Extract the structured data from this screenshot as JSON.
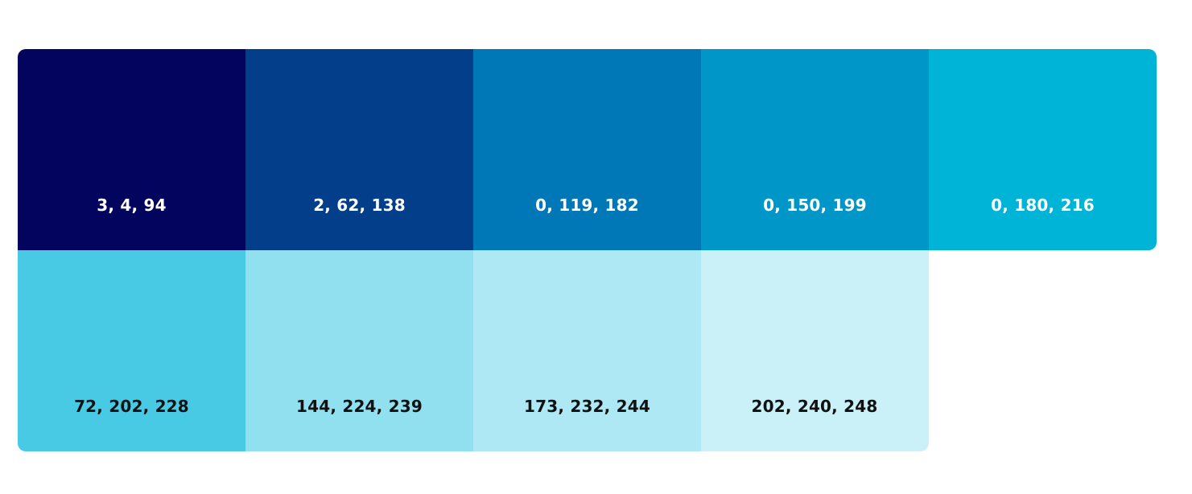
{
  "palette": {
    "rows": [
      [
        {
          "label": "3, 4, 94",
          "color": "#03045e",
          "text_color": "light"
        },
        {
          "label": "2, 62, 138",
          "color": "#023e8a",
          "text_color": "light"
        },
        {
          "label": "0, 119, 182",
          "color": "#0077b6",
          "text_color": "light"
        },
        {
          "label": "0, 150, 199",
          "color": "#0096c7",
          "text_color": "light"
        },
        {
          "label": "0, 180, 216",
          "color": "#00b4d8",
          "text_color": "light"
        }
      ],
      [
        {
          "label": "72, 202, 228",
          "color": "#48cae4",
          "text_color": "dark"
        },
        {
          "label": "144, 224, 239",
          "color": "#90e0ef",
          "text_color": "dark"
        },
        {
          "label": "173, 232, 244",
          "color": "#ade8f4",
          "text_color": "dark"
        },
        {
          "label": "202, 240, 248",
          "color": "#caf0f8",
          "text_color": "dark"
        }
      ]
    ]
  }
}
